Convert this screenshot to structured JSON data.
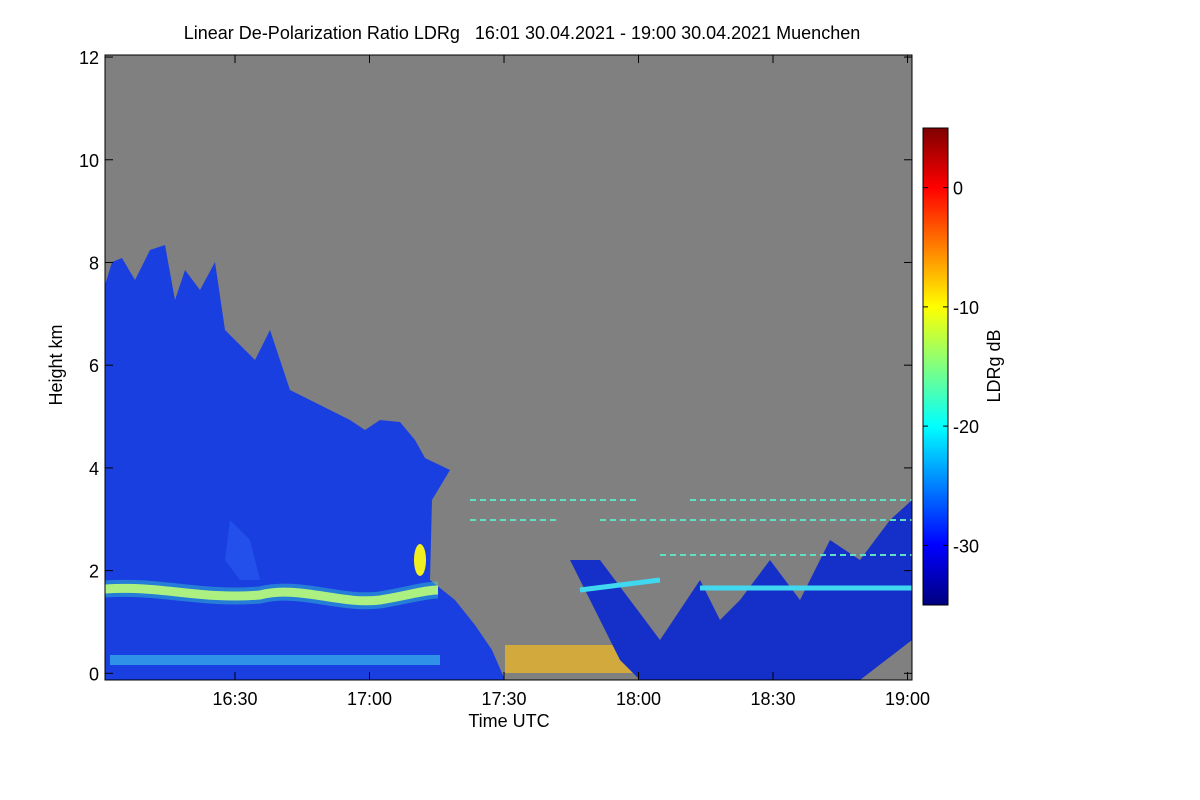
{
  "chart_data": {
    "type": "heatmap",
    "title": "Linear De-Polarization Ratio LDRg   16:01 30.04.2021 - 19:00 30.04.2021 Muenchen",
    "x_label": "Time UTC",
    "y_label": "Height km",
    "colorbar_label": "LDRg dB",
    "xlim": [
      961,
      1141
    ],
    "xticks": [
      {
        "value": 990,
        "label": "16:30"
      },
      {
        "value": 1020,
        "label": "17:00"
      },
      {
        "value": 1050,
        "label": "17:30"
      },
      {
        "value": 1080,
        "label": "18:00"
      },
      {
        "value": 1110,
        "label": "18:30"
      },
      {
        "value": 1140,
        "label": "19:00"
      }
    ],
    "ylim": [
      -0.13,
      12.04
    ],
    "yticks": [
      0,
      2,
      4,
      6,
      8,
      10,
      12
    ],
    "zlim": [
      -35,
      5
    ],
    "zticks": [
      0,
      -10,
      -20,
      -30
    ],
    "colormap": "jet",
    "background": "#808080"
  }
}
